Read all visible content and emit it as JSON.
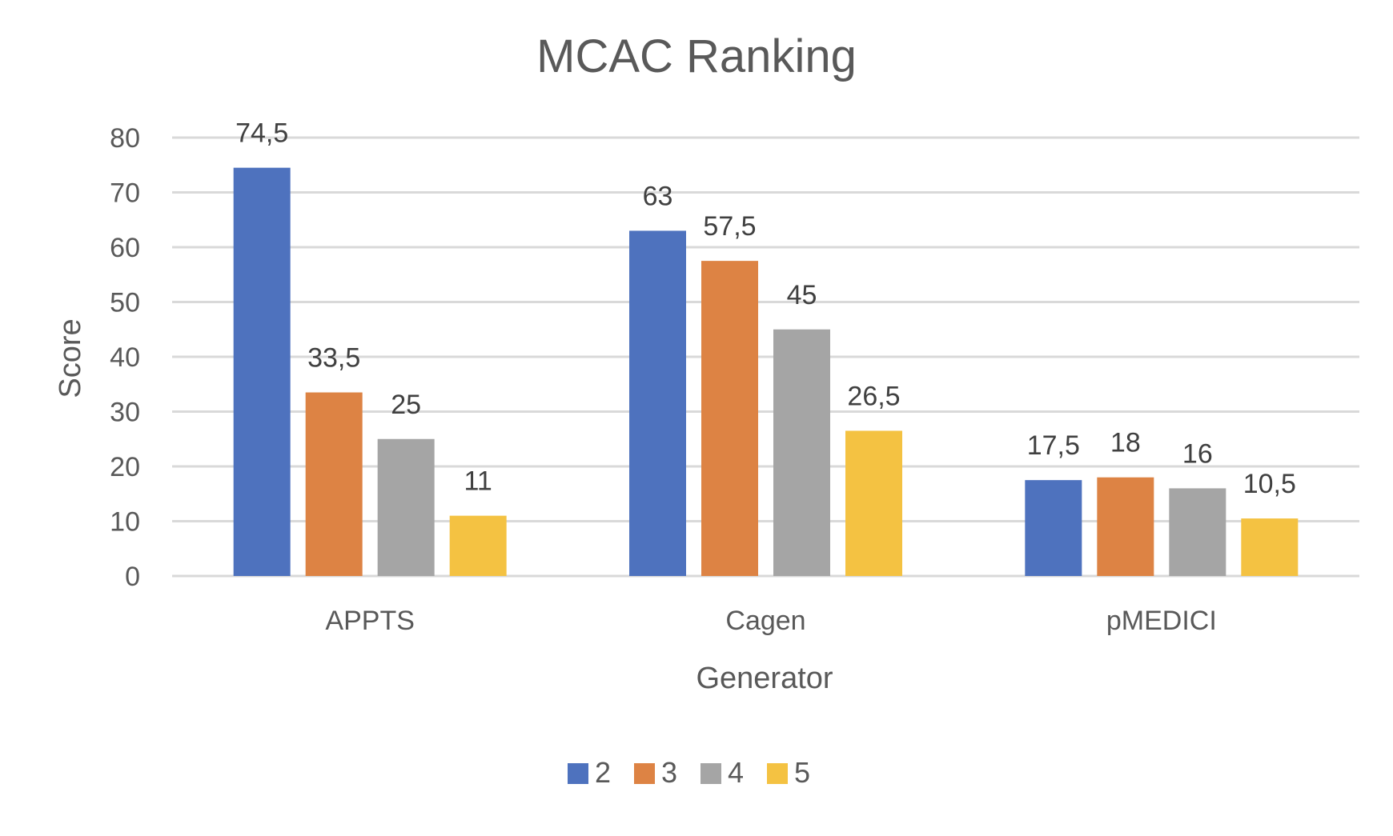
{
  "chart_data": {
    "type": "bar",
    "title": "MCAC Ranking",
    "xlabel": "Generator",
    "ylabel": "Score",
    "categories": [
      "APPTS",
      "Cagen",
      "pMEDICI"
    ],
    "series": [
      {
        "name": "2",
        "color": "#4e72be",
        "values": [
          74.5,
          63,
          17.5
        ],
        "labels": [
          "74,5",
          "63",
          "17,5"
        ]
      },
      {
        "name": "3",
        "color": "#dd8344",
        "values": [
          33.5,
          57.5,
          18
        ],
        "labels": [
          "33,5",
          "57,5",
          "18"
        ]
      },
      {
        "name": "4",
        "color": "#a5a5a5",
        "values": [
          25,
          45,
          16
        ],
        "labels": [
          "25",
          "45",
          "16"
        ]
      },
      {
        "name": "5",
        "color": "#f4c242",
        "values": [
          11,
          26.5,
          10.5
        ],
        "labels": [
          "11",
          "26,5",
          "10,5"
        ]
      }
    ],
    "ylim": [
      0,
      80
    ],
    "yticks": [
      0,
      10,
      20,
      30,
      40,
      50,
      60,
      70,
      80
    ],
    "grid": true,
    "legend": "bottom"
  }
}
